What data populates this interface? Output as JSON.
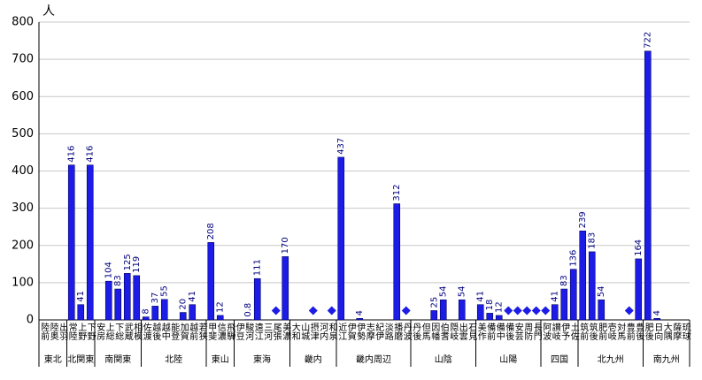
{
  "chart_data": {
    "type": "bar",
    "y_unit": "人",
    "categories": [
      "陸前",
      "陸奥",
      "出羽",
      "常陸",
      "上野",
      "下野",
      "安房",
      "上総",
      "下総",
      "武蔵",
      "相模",
      "佐渡",
      "越後",
      "越中",
      "能登",
      "加賀",
      "越前",
      "若狭",
      "甲斐",
      "信濃",
      "飛騨",
      "伊豆",
      "駿河",
      "遠江",
      "三河",
      "尾張",
      "美濃",
      "大和",
      "山城",
      "摂津",
      "河内",
      "和泉",
      "近江",
      "伊賀",
      "伊勢",
      "志摩",
      "紀伊",
      "淡路",
      "播磨",
      "丹波",
      "丹後",
      "但馬",
      "因幡",
      "伯耆",
      "隠岐",
      "出雲",
      "石見",
      "美作",
      "備前",
      "備中",
      "備後",
      "安芸",
      "周防",
      "長門",
      "阿波",
      "讃岐",
      "伊予",
      "土佐",
      "筑前",
      "筑後",
      "肥前",
      "壱岐",
      "対馬",
      "豊前",
      "豊後",
      "肥後",
      "日向",
      "大隅",
      "薩摩",
      "琉球"
    ],
    "regions": [
      {
        "name": "東北",
        "count": 3
      },
      {
        "name": "北関東",
        "count": 3
      },
      {
        "name": "南関東",
        "count": 5
      },
      {
        "name": "北陸",
        "count": 7
      },
      {
        "name": "東山",
        "count": 3
      },
      {
        "name": "東海",
        "count": 6
      },
      {
        "name": "畿内",
        "count": 5
      },
      {
        "name": "畿内周辺",
        "count": 8
      },
      {
        "name": "山陰",
        "count": 7
      },
      {
        "name": "山陽",
        "count": 7
      },
      {
        "name": "四国",
        "count": 4
      },
      {
        "name": "北九州",
        "count": 7
      },
      {
        "name": "南九州",
        "count": 5
      }
    ],
    "series": [
      {
        "type": "bar",
        "color": "#1c1ce6",
        "values": [
          null,
          null,
          null,
          416,
          41,
          416,
          null,
          104,
          83,
          125,
          119,
          8,
          37,
          55,
          null,
          20,
          41,
          null,
          208,
          12,
          null,
          null,
          0.8,
          111,
          null,
          null,
          170,
          null,
          null,
          null,
          null,
          null,
          437,
          null,
          4,
          null,
          null,
          null,
          312,
          null,
          null,
          null,
          25,
          54,
          null,
          54,
          null,
          41,
          18,
          12,
          null,
          null,
          null,
          null,
          null,
          41,
          83,
          136,
          239,
          183,
          54,
          null,
          null,
          null,
          164,
          722,
          4,
          null,
          null,
          null
        ]
      },
      {
        "type": "scatter",
        "marker": "diamond",
        "color": "#1c1ce6",
        "values": [
          null,
          null,
          null,
          null,
          null,
          null,
          null,
          null,
          null,
          null,
          null,
          null,
          null,
          null,
          null,
          null,
          null,
          null,
          null,
          null,
          null,
          null,
          null,
          null,
          null,
          25,
          null,
          null,
          null,
          25,
          null,
          25,
          null,
          null,
          null,
          null,
          null,
          null,
          null,
          25,
          null,
          null,
          null,
          null,
          null,
          null,
          null,
          null,
          null,
          null,
          25,
          25,
          25,
          25,
          25,
          null,
          null,
          null,
          null,
          null,
          null,
          null,
          null,
          25,
          null,
          null,
          null,
          null,
          null,
          null
        ]
      }
    ],
    "ylim": [
      0,
      800
    ],
    "yticks": [
      0,
      100,
      200,
      300,
      400,
      500,
      600,
      700,
      800
    ],
    "grid": true
  }
}
